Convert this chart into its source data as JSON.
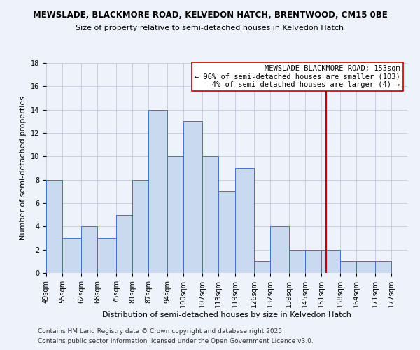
{
  "title": "MEWSLADE, BLACKMORE ROAD, KELVEDON HATCH, BRENTWOOD, CM15 0BE",
  "subtitle": "Size of property relative to semi-detached houses in Kelvedon Hatch",
  "xlabel": "Distribution of semi-detached houses by size in Kelvedon Hatch",
  "ylabel": "Number of semi-detached properties",
  "bin_labels": [
    "49sqm",
    "55sqm",
    "62sqm",
    "68sqm",
    "75sqm",
    "81sqm",
    "87sqm",
    "94sqm",
    "100sqm",
    "107sqm",
    "113sqm",
    "119sqm",
    "126sqm",
    "132sqm",
    "139sqm",
    "145sqm",
    "151sqm",
    "158sqm",
    "164sqm",
    "171sqm",
    "177sqm"
  ],
  "bin_edges": [
    49,
    55,
    62,
    68,
    75,
    81,
    87,
    94,
    100,
    107,
    113,
    119,
    126,
    132,
    139,
    145,
    151,
    158,
    164,
    171,
    177,
    183
  ],
  "counts": [
    8,
    3,
    4,
    3,
    5,
    8,
    14,
    10,
    13,
    10,
    7,
    9,
    1,
    4,
    2,
    2,
    2,
    1,
    1,
    1,
    0
  ],
  "bar_facecolor": "#c9d9f0",
  "bar_edgecolor": "#4472c4",
  "vline_x": 153,
  "vline_color": "#c00000",
  "annotation_text": "MEWSLADE BLACKMORE ROAD: 153sqm\n← 96% of semi-detached houses are smaller (103)\n   4% of semi-detached houses are larger (4) →",
  "annotation_box_edgecolor": "#c00000",
  "annotation_box_facecolor": "#ffffff",
  "ylim": [
    0,
    18
  ],
  "yticks": [
    0,
    2,
    4,
    6,
    8,
    10,
    12,
    14,
    16,
    18
  ],
  "footer1": "Contains HM Land Registry data © Crown copyright and database right 2025.",
  "footer2": "Contains public sector information licensed under the Open Government Licence v3.0.",
  "bg_color": "#eef2fb",
  "title_fontsize": 8.5,
  "subtitle_fontsize": 8,
  "axis_label_fontsize": 8,
  "tick_fontsize": 7,
  "annotation_fontsize": 7.5,
  "footer_fontsize": 6.5
}
